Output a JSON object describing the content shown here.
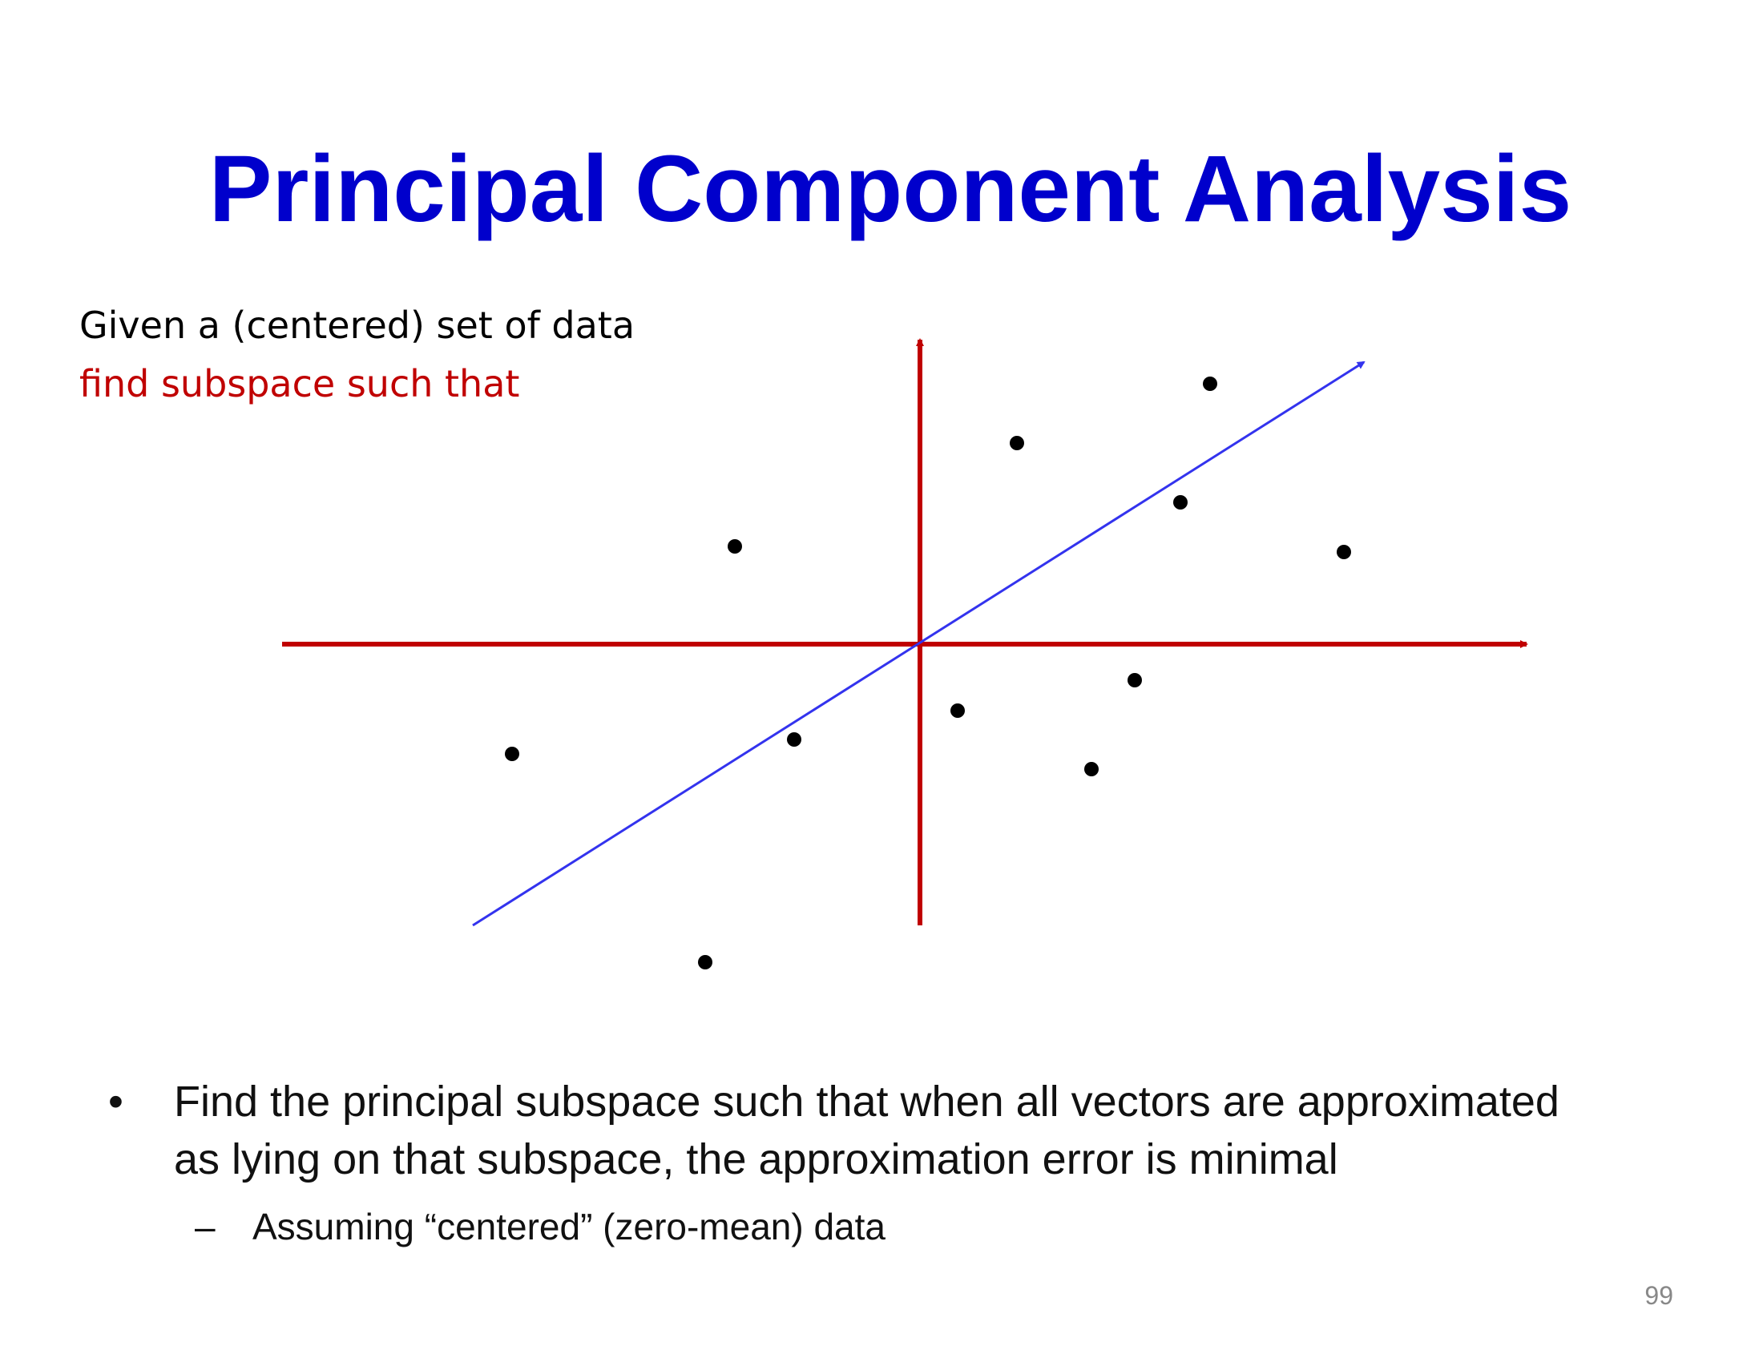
{
  "slide": {
    "title": "Principal Component Analysis",
    "intro": [
      "Given a (centered) set of data",
      "find subspace such that"
    ],
    "bullets": [
      {
        "lines": [
          "Find the principal subspace such that when all vectors are approximated",
          "as lying on that subspace, the approximation error is minimal"
        ],
        "sub": [
          "Assuming “centered” (zero-mean) data"
        ]
      }
    ],
    "bullet_marker": "•",
    "sub_marker": "–",
    "page_number": "99"
  }
}
